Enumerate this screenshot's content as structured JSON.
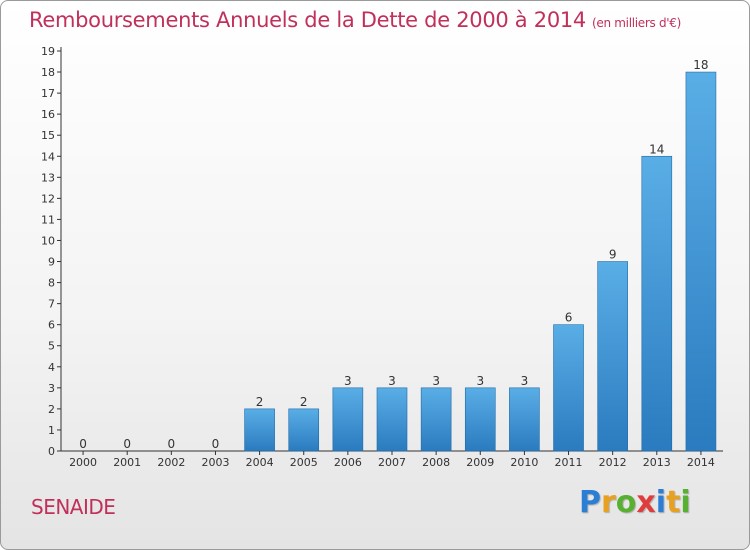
{
  "header": {
    "title": "Remboursements Annuels de la Dette de 2000 à 2014",
    "subtitle": "(en milliers d'€)"
  },
  "commune": "SENAIDE",
  "logo": {
    "letters": [
      "P",
      "r",
      "o",
      "x",
      "i",
      "t",
      "i"
    ],
    "colors": [
      "#2a7fd4",
      "#e8a020",
      "#58b030",
      "#e03c3c",
      "#2a7fd4",
      "#e8a020",
      "#58b030"
    ]
  },
  "colors": {
    "bar_light": "#5aaee6",
    "bar_dark": "#2a7bbf",
    "axis": "#333333",
    "grid": "#cccccc"
  },
  "chart_data": {
    "type": "bar",
    "categories": [
      "2000",
      "2001",
      "2002",
      "2003",
      "2004",
      "2005",
      "2006",
      "2007",
      "2008",
      "2009",
      "2010",
      "2011",
      "2012",
      "2013",
      "2014"
    ],
    "values": [
      0,
      0,
      0,
      0,
      2,
      2,
      3,
      3,
      3,
      3,
      3,
      6,
      9,
      14,
      18
    ],
    "value_labels": [
      "0",
      "0",
      "0",
      "0",
      "2",
      "2",
      "3",
      "3",
      "3",
      "3",
      "3",
      "6",
      "9",
      "14",
      "18"
    ],
    "y_ticks": [
      0,
      1,
      2,
      3,
      4,
      5,
      6,
      7,
      8,
      9,
      10,
      11,
      12,
      13,
      14,
      15,
      16,
      17,
      18,
      19
    ],
    "ylim": [
      0,
      19
    ],
    "title": "Remboursements Annuels de la Dette de 2000 à 2014",
    "xlabel": "",
    "ylabel": "",
    "grid": false
  }
}
